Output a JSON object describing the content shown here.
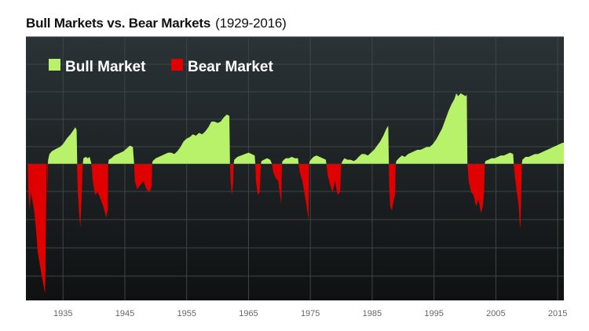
{
  "header": {
    "title": "Bull Markets vs. Bear Markets",
    "subtitle": "(1929-2016)"
  },
  "legend": {
    "bull_label": "Bull Market",
    "bear_label": "Bear Market"
  },
  "colors": {
    "background_top": "#2b3336",
    "background_bottom": "#0f1112",
    "bull": "#b7f26a",
    "bear": "#e00000",
    "grid": "#3c4649"
  },
  "chart_data": {
    "type": "area",
    "title": "Bull Markets vs. Bear Markets",
    "subtitle": "(1929-2016)",
    "xlabel": "",
    "ylabel": "",
    "xlim": [
      1929,
      2016
    ],
    "ylim": [
      -1,
      1
    ],
    "y_axis_labels_shown": false,
    "grid": true,
    "legend_position": "top-left",
    "x_ticks": [
      1935,
      1945,
      1955,
      1965,
      1975,
      1985,
      1995,
      2005,
      2015
    ],
    "series": [
      {
        "name": "Bull Market",
        "color": "#b7f26a",
        "points": [
          [
            1932.55,
            0
          ],
          [
            1932.6,
            0.03
          ],
          [
            1932.8,
            0.07
          ],
          [
            1933.2,
            0.09
          ],
          [
            1933.6,
            0.1
          ],
          [
            1934.0,
            0.11
          ],
          [
            1934.5,
            0.12
          ],
          [
            1935.0,
            0.14
          ],
          [
            1935.6,
            0.18
          ],
          [
            1936.2,
            0.21
          ],
          [
            1936.7,
            0.24
          ],
          [
            1937.0,
            0.26
          ],
          [
            1937.2,
            0.24
          ],
          [
            1937.3,
            0
          ],
          [
            1938.2,
            0
          ],
          [
            1938.3,
            0.04
          ],
          [
            1938.7,
            0.05
          ],
          [
            1939.0,
            0.04
          ],
          [
            1939.3,
            0.05
          ],
          [
            1939.6,
            0
          ],
          [
            1942.3,
            0
          ],
          [
            1942.4,
            0.03
          ],
          [
            1942.8,
            0.04
          ],
          [
            1943.3,
            0.06
          ],
          [
            1943.8,
            0.07
          ],
          [
            1944.3,
            0.08
          ],
          [
            1944.8,
            0.09
          ],
          [
            1945.3,
            0.11
          ],
          [
            1945.8,
            0.13
          ],
          [
            1946.3,
            0.12
          ],
          [
            1946.5,
            0
          ],
          [
            1949.4,
            0
          ],
          [
            1949.5,
            0.02
          ],
          [
            1950.0,
            0.04
          ],
          [
            1950.5,
            0.05
          ],
          [
            1951.0,
            0.06
          ],
          [
            1951.5,
            0.07
          ],
          [
            1952.0,
            0.08
          ],
          [
            1952.5,
            0.08
          ],
          [
            1953.0,
            0.07
          ],
          [
            1953.5,
            0.09
          ],
          [
            1954.0,
            0.12
          ],
          [
            1954.5,
            0.16
          ],
          [
            1955.0,
            0.18
          ],
          [
            1955.5,
            0.19
          ],
          [
            1956.0,
            0.21
          ],
          [
            1956.5,
            0.2
          ],
          [
            1957.0,
            0.22
          ],
          [
            1957.5,
            0.21
          ],
          [
            1958.0,
            0.23
          ],
          [
            1958.5,
            0.26
          ],
          [
            1959.0,
            0.3
          ],
          [
            1959.5,
            0.3
          ],
          [
            1960.0,
            0.29
          ],
          [
            1960.5,
            0.3
          ],
          [
            1961.0,
            0.33
          ],
          [
            1961.5,
            0.35
          ],
          [
            1961.9,
            0.34
          ],
          [
            1962.0,
            0
          ],
          [
            1962.6,
            0
          ],
          [
            1962.7,
            0.03
          ],
          [
            1963.2,
            0.05
          ],
          [
            1963.8,
            0.06
          ],
          [
            1964.4,
            0.07
          ],
          [
            1965.0,
            0.08
          ],
          [
            1965.5,
            0.07
          ],
          [
            1966.0,
            0.06
          ],
          [
            1966.1,
            0
          ],
          [
            1967.0,
            0
          ],
          [
            1967.1,
            0.02
          ],
          [
            1967.5,
            0.03
          ],
          [
            1968.0,
            0.04
          ],
          [
            1968.5,
            0.03
          ],
          [
            1968.8,
            0
          ],
          [
            1970.4,
            0
          ],
          [
            1970.5,
            0.02
          ],
          [
            1971.0,
            0.04
          ],
          [
            1971.5,
            0.04
          ],
          [
            1972.0,
            0.05
          ],
          [
            1972.5,
            0.04
          ],
          [
            1973.0,
            0.04
          ],
          [
            1973.1,
            0
          ],
          [
            1974.8,
            0
          ],
          [
            1974.9,
            0.02
          ],
          [
            1975.5,
            0.05
          ],
          [
            1976.0,
            0.06
          ],
          [
            1976.5,
            0.05
          ],
          [
            1977.0,
            0.04
          ],
          [
            1977.5,
            0.03
          ],
          [
            1977.6,
            0
          ],
          [
            1980.0,
            0
          ],
          [
            1980.2,
            0.02
          ],
          [
            1980.5,
            0.04
          ],
          [
            1981.0,
            0.03
          ],
          [
            1981.5,
            0.03
          ],
          [
            1982.0,
            0.02
          ],
          [
            1982.4,
            0.03
          ],
          [
            1982.8,
            0.05
          ],
          [
            1983.3,
            0.07
          ],
          [
            1983.8,
            0.07
          ],
          [
            1984.3,
            0.06
          ],
          [
            1984.8,
            0.08
          ],
          [
            1985.3,
            0.1
          ],
          [
            1985.8,
            0.13
          ],
          [
            1986.3,
            0.16
          ],
          [
            1986.8,
            0.2
          ],
          [
            1987.3,
            0.25
          ],
          [
            1987.6,
            0.27
          ],
          [
            1987.7,
            0
          ],
          [
            1988.8,
            0
          ],
          [
            1988.9,
            0.02
          ],
          [
            1989.3,
            0.04
          ],
          [
            1989.8,
            0.06
          ],
          [
            1990.3,
            0.05
          ],
          [
            1990.8,
            0.07
          ],
          [
            1991.3,
            0.08
          ],
          [
            1991.8,
            0.09
          ],
          [
            1992.3,
            0.1
          ],
          [
            1992.8,
            0.1
          ],
          [
            1993.3,
            0.11
          ],
          [
            1993.8,
            0.12
          ],
          [
            1994.3,
            0.12
          ],
          [
            1994.8,
            0.14
          ],
          [
            1995.3,
            0.17
          ],
          [
            1995.8,
            0.21
          ],
          [
            1996.3,
            0.25
          ],
          [
            1996.8,
            0.31
          ],
          [
            1997.3,
            0.37
          ],
          [
            1997.8,
            0.42
          ],
          [
            1998.3,
            0.46
          ],
          [
            1998.6,
            0.5
          ],
          [
            1998.9,
            0.48
          ],
          [
            1999.3,
            0.5
          ],
          [
            1999.7,
            0.49
          ],
          [
            2000.1,
            0.48
          ],
          [
            2000.3,
            0.49
          ],
          [
            2000.4,
            0
          ],
          [
            2003.2,
            0
          ],
          [
            2003.3,
            0.02
          ],
          [
            2003.8,
            0.03
          ],
          [
            2004.3,
            0.04
          ],
          [
            2004.8,
            0.04
          ],
          [
            2005.3,
            0.05
          ],
          [
            2005.8,
            0.06
          ],
          [
            2006.3,
            0.06
          ],
          [
            2006.8,
            0.07
          ],
          [
            2007.3,
            0.08
          ],
          [
            2007.8,
            0.07
          ],
          [
            2007.9,
            0
          ],
          [
            2009.2,
            0
          ],
          [
            2009.3,
            0.03
          ],
          [
            2009.8,
            0.05
          ],
          [
            2010.3,
            0.05
          ],
          [
            2010.8,
            0.06
          ],
          [
            2011.3,
            0.07
          ],
          [
            2011.8,
            0.07
          ],
          [
            2012.3,
            0.08
          ],
          [
            2012.8,
            0.09
          ],
          [
            2013.3,
            0.1
          ],
          [
            2013.8,
            0.11
          ],
          [
            2014.3,
            0.12
          ],
          [
            2014.8,
            0.13
          ],
          [
            2015.3,
            0.14
          ],
          [
            2015.8,
            0.15
          ],
          [
            2016.0,
            0.15
          ],
          [
            2016.0,
            0
          ]
        ]
      },
      {
        "name": "Bear Market",
        "color": "#e00000",
        "points": [
          [
            1929.3,
            0
          ],
          [
            1929.4,
            -0.18
          ],
          [
            1929.6,
            -0.32
          ],
          [
            1929.8,
            -0.2
          ],
          [
            1930.0,
            -0.25
          ],
          [
            1930.3,
            -0.32
          ],
          [
            1930.6,
            -0.45
          ],
          [
            1930.9,
            -0.62
          ],
          [
            1931.2,
            -0.7
          ],
          [
            1931.5,
            -0.78
          ],
          [
            1931.8,
            -0.85
          ],
          [
            1932.1,
            -0.92
          ],
          [
            1932.2,
            -0.55
          ],
          [
            1932.35,
            0
          ],
          [
            1932.45,
            0
          ],
          [
            1932.5,
            -0.28
          ],
          [
            1932.55,
            0
          ],
          [
            1937.25,
            0
          ],
          [
            1937.4,
            -0.2
          ],
          [
            1937.6,
            -0.35
          ],
          [
            1937.8,
            -0.45
          ],
          [
            1938.0,
            -0.25
          ],
          [
            1938.2,
            0
          ],
          [
            1939.6,
            0
          ],
          [
            1939.8,
            -0.12
          ],
          [
            1940.2,
            -0.22
          ],
          [
            1940.6,
            -0.2
          ],
          [
            1941.0,
            -0.24
          ],
          [
            1941.5,
            -0.3
          ],
          [
            1942.0,
            -0.38
          ],
          [
            1942.25,
            -0.32
          ],
          [
            1942.3,
            0
          ],
          [
            1946.5,
            0
          ],
          [
            1946.6,
            -0.12
          ],
          [
            1947.0,
            -0.18
          ],
          [
            1947.5,
            -0.15
          ],
          [
            1948.0,
            -0.12
          ],
          [
            1948.5,
            -0.18
          ],
          [
            1949.0,
            -0.2
          ],
          [
            1949.35,
            -0.15
          ],
          [
            1949.4,
            0
          ],
          [
            1962.0,
            0
          ],
          [
            1962.1,
            -0.12
          ],
          [
            1962.3,
            -0.22
          ],
          [
            1962.5,
            -0.15
          ],
          [
            1962.6,
            0
          ],
          [
            1966.1,
            0
          ],
          [
            1966.2,
            -0.12
          ],
          [
            1966.5,
            -0.22
          ],
          [
            1966.8,
            -0.2
          ],
          [
            1967.0,
            0
          ],
          [
            1968.8,
            0
          ],
          [
            1969.0,
            -0.06
          ],
          [
            1969.4,
            -0.1
          ],
          [
            1969.8,
            -0.12
          ],
          [
            1970.1,
            -0.22
          ],
          [
            1970.3,
            -0.28
          ],
          [
            1970.4,
            0
          ],
          [
            1973.1,
            0
          ],
          [
            1973.3,
            -0.06
          ],
          [
            1973.7,
            -0.12
          ],
          [
            1974.1,
            -0.22
          ],
          [
            1974.4,
            -0.3
          ],
          [
            1974.7,
            -0.4
          ],
          [
            1974.8,
            0
          ],
          [
            1977.6,
            0
          ],
          [
            1977.8,
            -0.08
          ],
          [
            1978.2,
            -0.15
          ],
          [
            1978.6,
            -0.2
          ],
          [
            1979.0,
            -0.12
          ],
          [
            1979.4,
            -0.22
          ],
          [
            1979.8,
            -0.2
          ],
          [
            1980.0,
            0
          ],
          [
            1987.7,
            0
          ],
          [
            1987.75,
            -0.15
          ],
          [
            1987.9,
            -0.3
          ],
          [
            1988.2,
            -0.33
          ],
          [
            1988.5,
            -0.25
          ],
          [
            1988.7,
            -0.22
          ],
          [
            1988.8,
            0
          ],
          [
            2000.4,
            0
          ],
          [
            2000.6,
            -0.12
          ],
          [
            2001.0,
            -0.2
          ],
          [
            2001.4,
            -0.22
          ],
          [
            2001.8,
            -0.3
          ],
          [
            2002.2,
            -0.25
          ],
          [
            2002.6,
            -0.35
          ],
          [
            2002.9,
            -0.3
          ],
          [
            2003.1,
            -0.2
          ],
          [
            2003.2,
            0
          ],
          [
            2007.9,
            0
          ],
          [
            2008.1,
            -0.1
          ],
          [
            2008.4,
            -0.2
          ],
          [
            2008.7,
            -0.3
          ],
          [
            2008.9,
            -0.46
          ],
          [
            2009.0,
            -0.42
          ],
          [
            2009.1,
            -0.2
          ],
          [
            2009.2,
            0
          ]
        ]
      }
    ]
  }
}
